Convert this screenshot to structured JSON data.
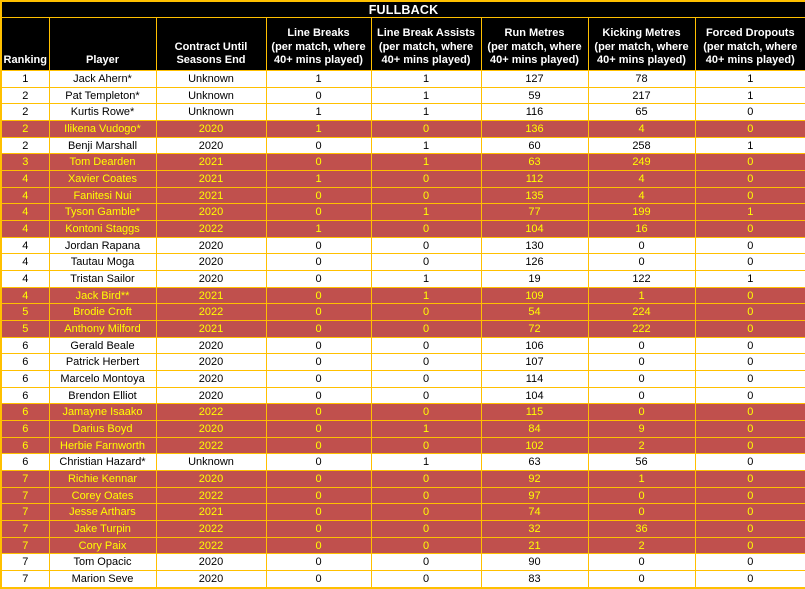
{
  "title": "FULLBACK",
  "colors": {
    "border": "#FFC000",
    "header_bg": "#000000",
    "header_text": "#FFFFFF",
    "row_bg": "#FFFFFF",
    "row_text": "#000000",
    "highlight_bg": "#C0504D",
    "highlight_text": "#FFFF00"
  },
  "chart_data": {
    "type": "table",
    "title": "FULLBACK",
    "column_keys": [
      "ranking",
      "player",
      "contract",
      "line_breaks",
      "line_break_assists",
      "run_metres",
      "kicking_metres",
      "forced_dropouts"
    ],
    "columns": [
      "Ranking",
      "Player",
      "Contract Until\nSeasons End",
      "Line Breaks\n(per match, where\n40+ mins played)",
      "Line Break Assists\n(per match, where\n40+ mins played)",
      "Run Metres\n(per match, where\n40+ mins played)",
      "Kicking Metres\n(per match, where\n40+ mins played)",
      "Forced Dropouts\n(per match, where\n40+ mins played)"
    ],
    "rows": [
      {
        "ranking": "1",
        "player": "Jack Ahern*",
        "contract": "Unknown",
        "line_breaks": "1",
        "line_break_assists": "1",
        "run_metres": "127",
        "kicking_metres": "78",
        "forced_dropouts": "1",
        "highlighted": false
      },
      {
        "ranking": "2",
        "player": "Pat Templeton*",
        "contract": "Unknown",
        "line_breaks": "0",
        "line_break_assists": "1",
        "run_metres": "59",
        "kicking_metres": "217",
        "forced_dropouts": "1",
        "highlighted": false
      },
      {
        "ranking": "2",
        "player": "Kurtis Rowe*",
        "contract": "Unknown",
        "line_breaks": "1",
        "line_break_assists": "1",
        "run_metres": "116",
        "kicking_metres": "65",
        "forced_dropouts": "0",
        "highlighted": false
      },
      {
        "ranking": "2",
        "player": "Ilikena Vudogo*",
        "contract": "2020",
        "line_breaks": "1",
        "line_break_assists": "0",
        "run_metres": "136",
        "kicking_metres": "4",
        "forced_dropouts": "0",
        "highlighted": true
      },
      {
        "ranking": "2",
        "player": "Benji Marshall",
        "contract": "2020",
        "line_breaks": "0",
        "line_break_assists": "1",
        "run_metres": "60",
        "kicking_metres": "258",
        "forced_dropouts": "1",
        "highlighted": false
      },
      {
        "ranking": "3",
        "player": "Tom Dearden",
        "contract": "2021",
        "line_breaks": "0",
        "line_break_assists": "1",
        "run_metres": "63",
        "kicking_metres": "249",
        "forced_dropouts": "0",
        "highlighted": true
      },
      {
        "ranking": "4",
        "player": "Xavier Coates",
        "contract": "2021",
        "line_breaks": "1",
        "line_break_assists": "0",
        "run_metres": "112",
        "kicking_metres": "4",
        "forced_dropouts": "0",
        "highlighted": true
      },
      {
        "ranking": "4",
        "player": "Fanitesi Nui",
        "contract": "2021",
        "line_breaks": "0",
        "line_break_assists": "0",
        "run_metres": "135",
        "kicking_metres": "4",
        "forced_dropouts": "0",
        "highlighted": true
      },
      {
        "ranking": "4",
        "player": "Tyson Gamble*",
        "contract": "2020",
        "line_breaks": "0",
        "line_break_assists": "1",
        "run_metres": "77",
        "kicking_metres": "199",
        "forced_dropouts": "1",
        "highlighted": true
      },
      {
        "ranking": "4",
        "player": "Kontoni Staggs",
        "contract": "2022",
        "line_breaks": "1",
        "line_break_assists": "0",
        "run_metres": "104",
        "kicking_metres": "16",
        "forced_dropouts": "0",
        "highlighted": true
      },
      {
        "ranking": "4",
        "player": "Jordan Rapana",
        "contract": "2020",
        "line_breaks": "0",
        "line_break_assists": "0",
        "run_metres": "130",
        "kicking_metres": "0",
        "forced_dropouts": "0",
        "highlighted": false
      },
      {
        "ranking": "4",
        "player": "Tautau Moga",
        "contract": "2020",
        "line_breaks": "0",
        "line_break_assists": "0",
        "run_metres": "126",
        "kicking_metres": "0",
        "forced_dropouts": "0",
        "highlighted": false
      },
      {
        "ranking": "4",
        "player": "Tristan Sailor",
        "contract": "2020",
        "line_breaks": "0",
        "line_break_assists": "1",
        "run_metres": "19",
        "kicking_metres": "122",
        "forced_dropouts": "1",
        "highlighted": false
      },
      {
        "ranking": "4",
        "player": "Jack Bird**",
        "contract": "2021",
        "line_breaks": "0",
        "line_break_assists": "1",
        "run_metres": "109",
        "kicking_metres": "1",
        "forced_dropouts": "0",
        "highlighted": true
      },
      {
        "ranking": "5",
        "player": "Brodie Croft",
        "contract": "2022",
        "line_breaks": "0",
        "line_break_assists": "0",
        "run_metres": "54",
        "kicking_metres": "224",
        "forced_dropouts": "0",
        "highlighted": true
      },
      {
        "ranking": "5",
        "player": "Anthony Milford",
        "contract": "2021",
        "line_breaks": "0",
        "line_break_assists": "0",
        "run_metres": "72",
        "kicking_metres": "222",
        "forced_dropouts": "0",
        "highlighted": true
      },
      {
        "ranking": "6",
        "player": "Gerald Beale",
        "contract": "2020",
        "line_breaks": "0",
        "line_break_assists": "0",
        "run_metres": "106",
        "kicking_metres": "0",
        "forced_dropouts": "0",
        "highlighted": false
      },
      {
        "ranking": "6",
        "player": "Patrick Herbert",
        "contract": "2020",
        "line_breaks": "0",
        "line_break_assists": "0",
        "run_metres": "107",
        "kicking_metres": "0",
        "forced_dropouts": "0",
        "highlighted": false
      },
      {
        "ranking": "6",
        "player": "Marcelo Montoya",
        "contract": "2020",
        "line_breaks": "0",
        "line_break_assists": "0",
        "run_metres": "114",
        "kicking_metres": "0",
        "forced_dropouts": "0",
        "highlighted": false
      },
      {
        "ranking": "6",
        "player": "Brendon Elliot",
        "contract": "2020",
        "line_breaks": "0",
        "line_break_assists": "0",
        "run_metres": "104",
        "kicking_metres": "0",
        "forced_dropouts": "0",
        "highlighted": false
      },
      {
        "ranking": "6",
        "player": "Jamayne Isaako",
        "contract": "2022",
        "line_breaks": "0",
        "line_break_assists": "0",
        "run_metres": "115",
        "kicking_metres": "0",
        "forced_dropouts": "0",
        "highlighted": true
      },
      {
        "ranking": "6",
        "player": "Darius Boyd",
        "contract": "2020",
        "line_breaks": "0",
        "line_break_assists": "1",
        "run_metres": "84",
        "kicking_metres": "9",
        "forced_dropouts": "0",
        "highlighted": true
      },
      {
        "ranking": "6",
        "player": "Herbie Farnworth",
        "contract": "2022",
        "line_breaks": "0",
        "line_break_assists": "0",
        "run_metres": "102",
        "kicking_metres": "2",
        "forced_dropouts": "0",
        "highlighted": true
      },
      {
        "ranking": "6",
        "player": "Christian Hazard*",
        "contract": "Unknown",
        "line_breaks": "0",
        "line_break_assists": "1",
        "run_metres": "63",
        "kicking_metres": "56",
        "forced_dropouts": "0",
        "highlighted": false
      },
      {
        "ranking": "7",
        "player": "Richie Kennar",
        "contract": "2020",
        "line_breaks": "0",
        "line_break_assists": "0",
        "run_metres": "92",
        "kicking_metres": "1",
        "forced_dropouts": "0",
        "highlighted": true
      },
      {
        "ranking": "7",
        "player": "Corey Oates",
        "contract": "2022",
        "line_breaks": "0",
        "line_break_assists": "0",
        "run_metres": "97",
        "kicking_metres": "0",
        "forced_dropouts": "0",
        "highlighted": true
      },
      {
        "ranking": "7",
        "player": "Jesse Arthars",
        "contract": "2021",
        "line_breaks": "0",
        "line_break_assists": "0",
        "run_metres": "74",
        "kicking_metres": "0",
        "forced_dropouts": "0",
        "highlighted": true
      },
      {
        "ranking": "7",
        "player": "Jake Turpin",
        "contract": "2022",
        "line_breaks": "0",
        "line_break_assists": "0",
        "run_metres": "32",
        "kicking_metres": "36",
        "forced_dropouts": "0",
        "highlighted": true
      },
      {
        "ranking": "7",
        "player": "Cory Paix",
        "contract": "2022",
        "line_breaks": "0",
        "line_break_assists": "0",
        "run_metres": "21",
        "kicking_metres": "2",
        "forced_dropouts": "0",
        "highlighted": true
      },
      {
        "ranking": "7",
        "player": "Tom Opacic",
        "contract": "2020",
        "line_breaks": "0",
        "line_break_assists": "0",
        "run_metres": "90",
        "kicking_metres": "0",
        "forced_dropouts": "0",
        "highlighted": false
      },
      {
        "ranking": "7",
        "player": "Marion Seve",
        "contract": "2020",
        "line_breaks": "0",
        "line_break_assists": "0",
        "run_metres": "83",
        "kicking_metres": "0",
        "forced_dropouts": "0",
        "highlighted": false
      }
    ]
  }
}
